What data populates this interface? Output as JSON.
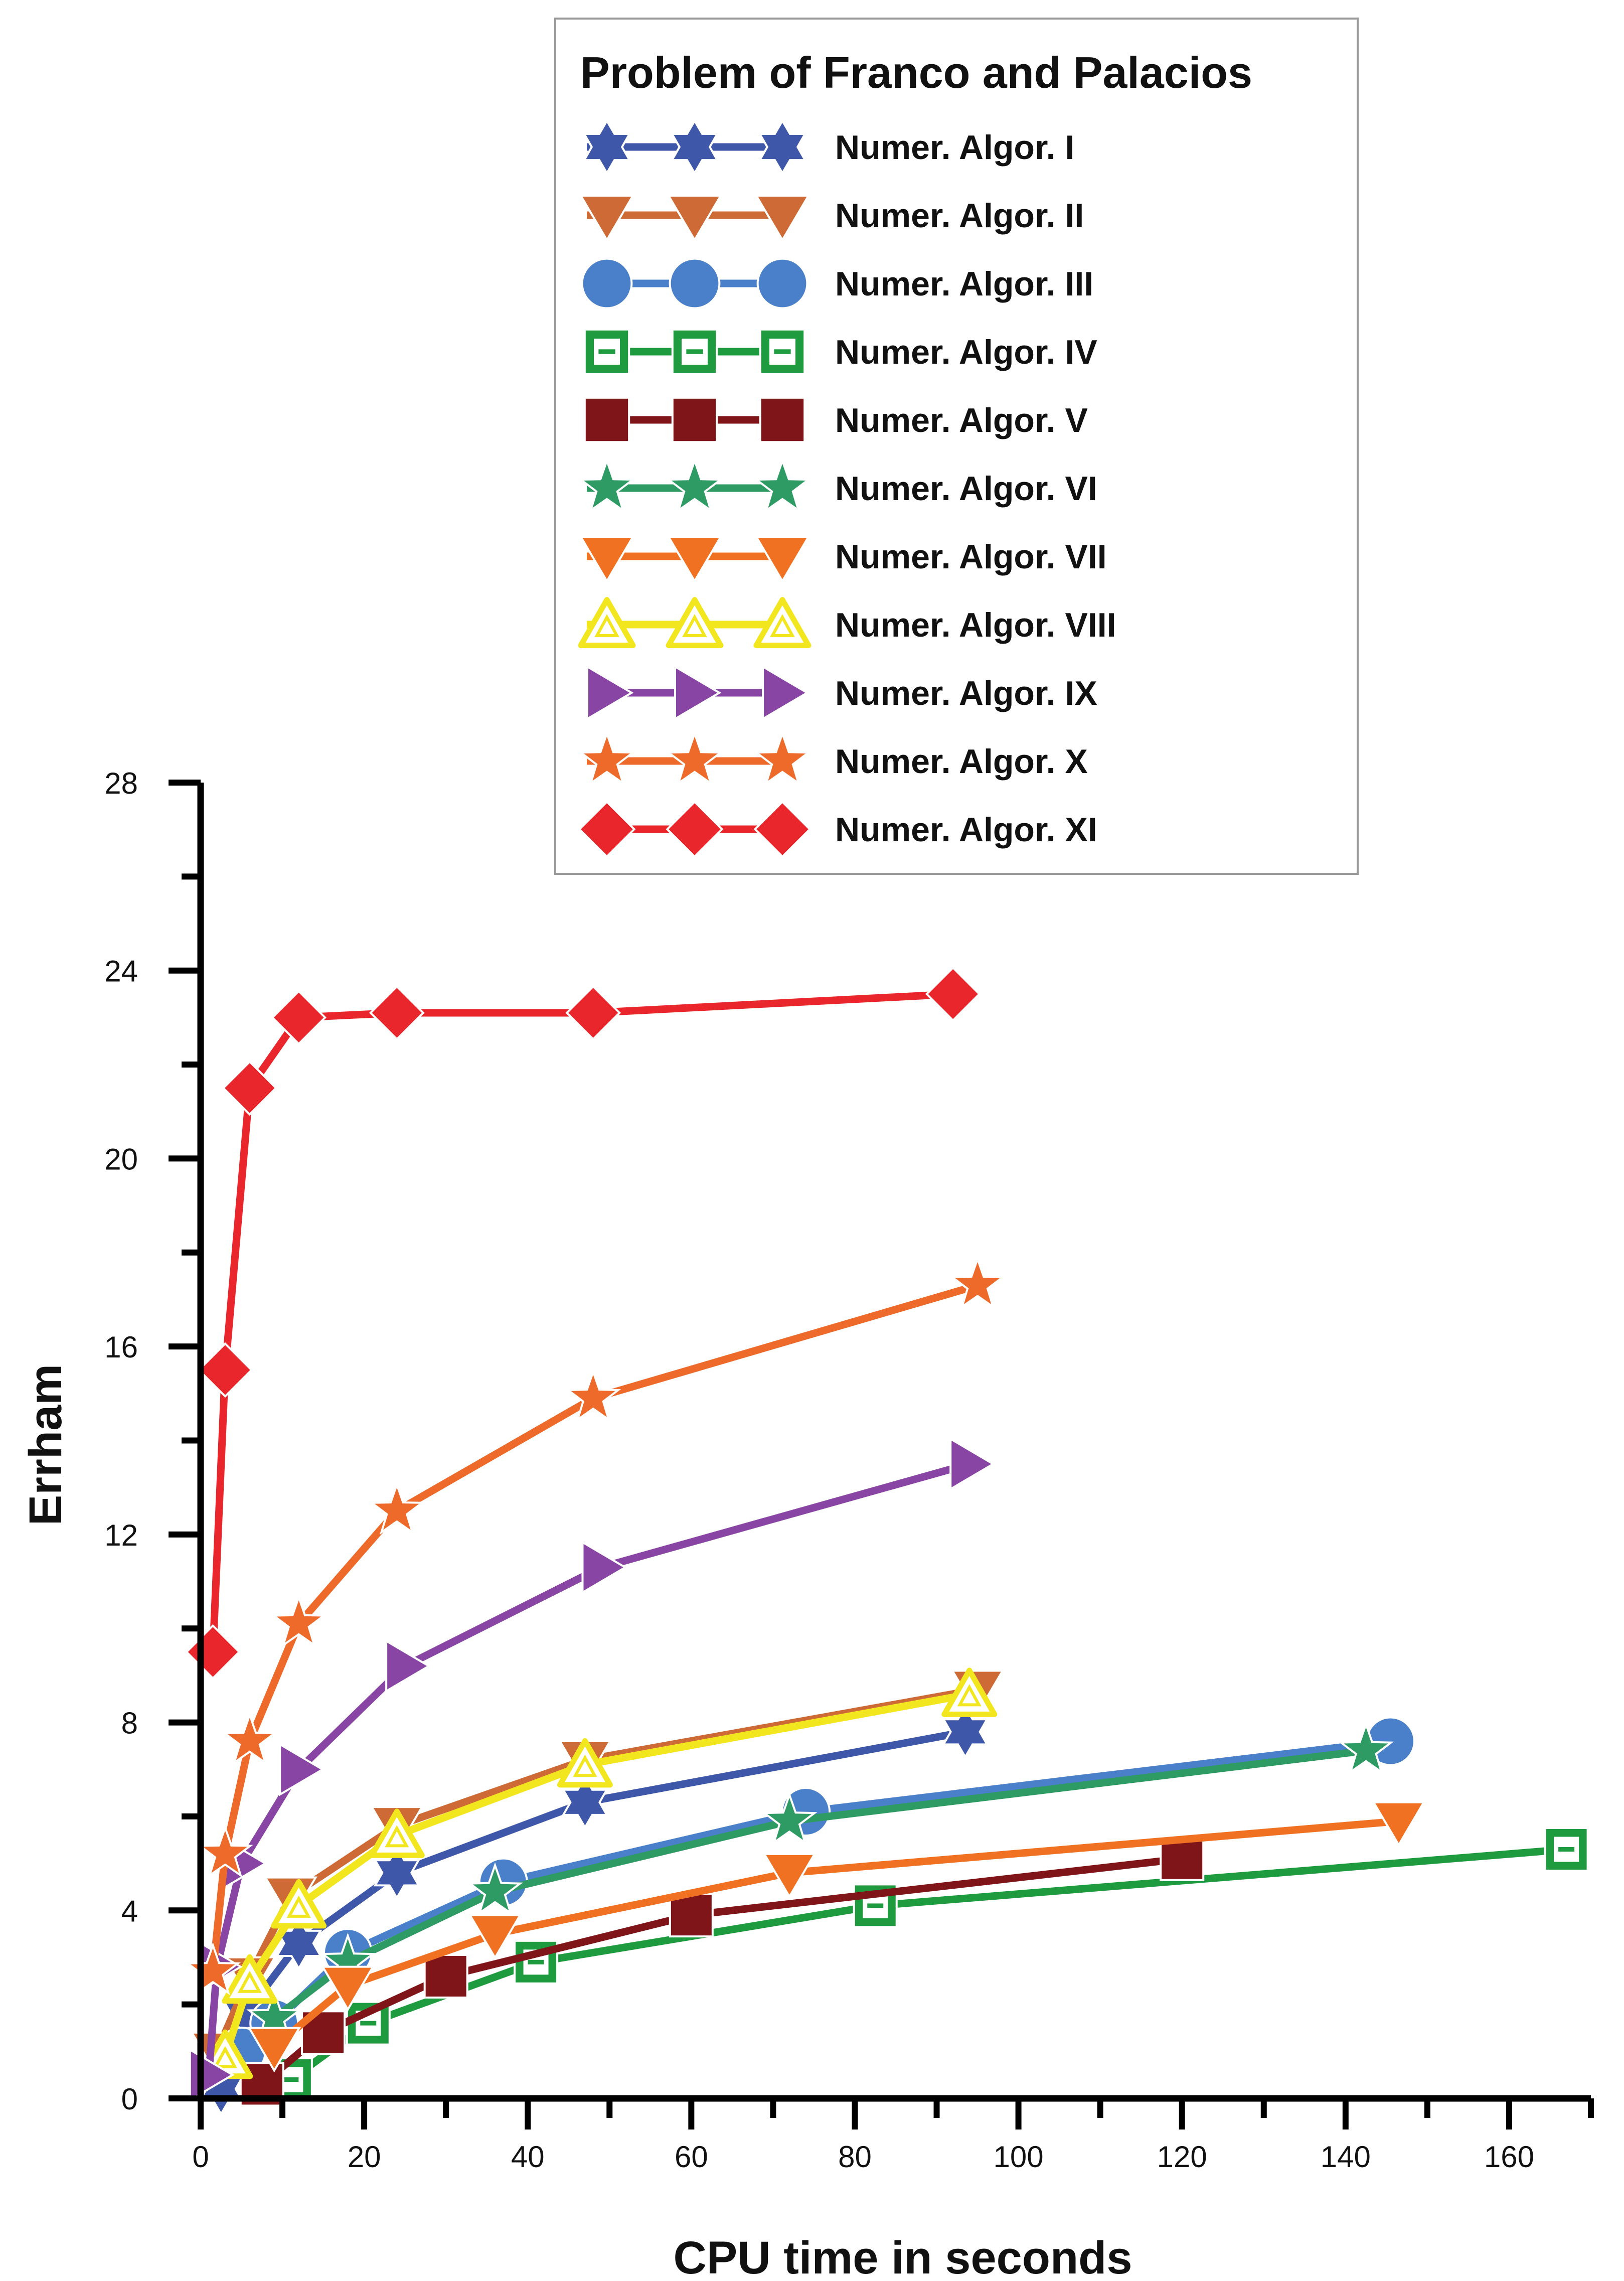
{
  "chart_data": {
    "type": "line",
    "title": "Problem of Franco and Palacios",
    "xlabel": "CPU time in seconds",
    "ylabel": "Errham",
    "xlim": [
      0,
      170
    ],
    "ylim": [
      0,
      28
    ],
    "xticks": [
      0,
      20,
      40,
      60,
      80,
      100,
      120,
      140,
      160
    ],
    "yticks": [
      0,
      4,
      8,
      12,
      16,
      20,
      24,
      28
    ],
    "x_tick_labels": [
      "0",
      "20",
      "40",
      "60",
      "80",
      "100",
      "120",
      "140",
      "160"
    ],
    "y_tick_labels": [
      "0",
      "4",
      "8",
      "12",
      "16",
      "20",
      "24",
      "28"
    ],
    "legend_position": "top-center",
    "series": [
      {
        "name": "Numer. Algor. I",
        "color": "#3F57A8",
        "marker": "hexagram",
        "x": [
          2.5,
          5.5,
          12,
          24,
          47,
          93.5
        ],
        "y": [
          0.2,
          1.8,
          3.3,
          4.8,
          6.3,
          7.8
        ]
      },
      {
        "name": "Numer. Algor. II",
        "color": "#CD6A35",
        "marker": "triangle-down",
        "x": [
          2,
          6,
          11,
          24,
          47,
          95
        ],
        "y": [
          1.0,
          2.6,
          4.3,
          5.8,
          7.2,
          8.7
        ]
      },
      {
        "name": "Numer. Algor. III",
        "color": "#4A7FC9",
        "marker": "circle",
        "x": [
          5,
          9,
          18,
          37,
          74,
          145.5
        ],
        "y": [
          1.0,
          1.6,
          3.1,
          4.6,
          6.1,
          7.6
        ]
      },
      {
        "name": "Numer. Algor. IV",
        "color": "#1E9B3E",
        "marker": "square-open",
        "x": [
          11,
          20.5,
          41,
          82.5,
          167
        ],
        "y": [
          0.4,
          1.6,
          2.9,
          4.1,
          5.3
        ]
      },
      {
        "name": "Numer. Algor. V",
        "color": "#7F1518",
        "marker": "square",
        "x": [
          7.5,
          15,
          30,
          60,
          120
        ],
        "y": [
          0.3,
          1.4,
          2.6,
          3.9,
          5.1
        ]
      },
      {
        "name": "Numer. Algor. VI",
        "color": "#2E9A64",
        "marker": "star",
        "x": [
          9,
          18,
          36,
          72,
          142.5
        ],
        "y": [
          1.7,
          2.9,
          4.4,
          5.9,
          7.4
        ]
      },
      {
        "name": "Numer. Algor. VII",
        "color": "#F07122",
        "marker": "triangle-down",
        "x": [
          9,
          18,
          36,
          72,
          146.5
        ],
        "y": [
          1.1,
          2.4,
          3.5,
          4.8,
          5.9
        ]
      },
      {
        "name": "Numer. Algor. VIII",
        "color": "#F2E61F",
        "marker": "triangle-open",
        "x": [
          3,
          6,
          12,
          24,
          47,
          94
        ],
        "y": [
          0.9,
          2.5,
          4.1,
          5.6,
          7.1,
          8.6
        ]
      },
      {
        "name": "Numer. Algor. IX",
        "color": "#8845A3",
        "marker": "triangle-right",
        "x": [
          1,
          2,
          5,
          12,
          25,
          49,
          94
        ],
        "y": [
          0.5,
          2.8,
          5.0,
          7.0,
          9.2,
          11.3,
          13.5
        ]
      },
      {
        "name": "Numer. Algor. X",
        "color": "#EE6A2A",
        "marker": "star",
        "x": [
          1.5,
          3,
          6,
          12,
          24,
          48,
          95
        ],
        "y": [
          2.7,
          5.2,
          7.6,
          10.1,
          12.5,
          14.9,
          17.3
        ]
      },
      {
        "name": "Numer. Algor. XI",
        "color": "#E8262B",
        "marker": "diamond",
        "x": [
          1.5,
          3,
          6,
          12,
          24,
          48,
          92
        ],
        "y": [
          9.5,
          15.5,
          21.5,
          23.0,
          23.1,
          23.1,
          23.5
        ]
      }
    ]
  }
}
